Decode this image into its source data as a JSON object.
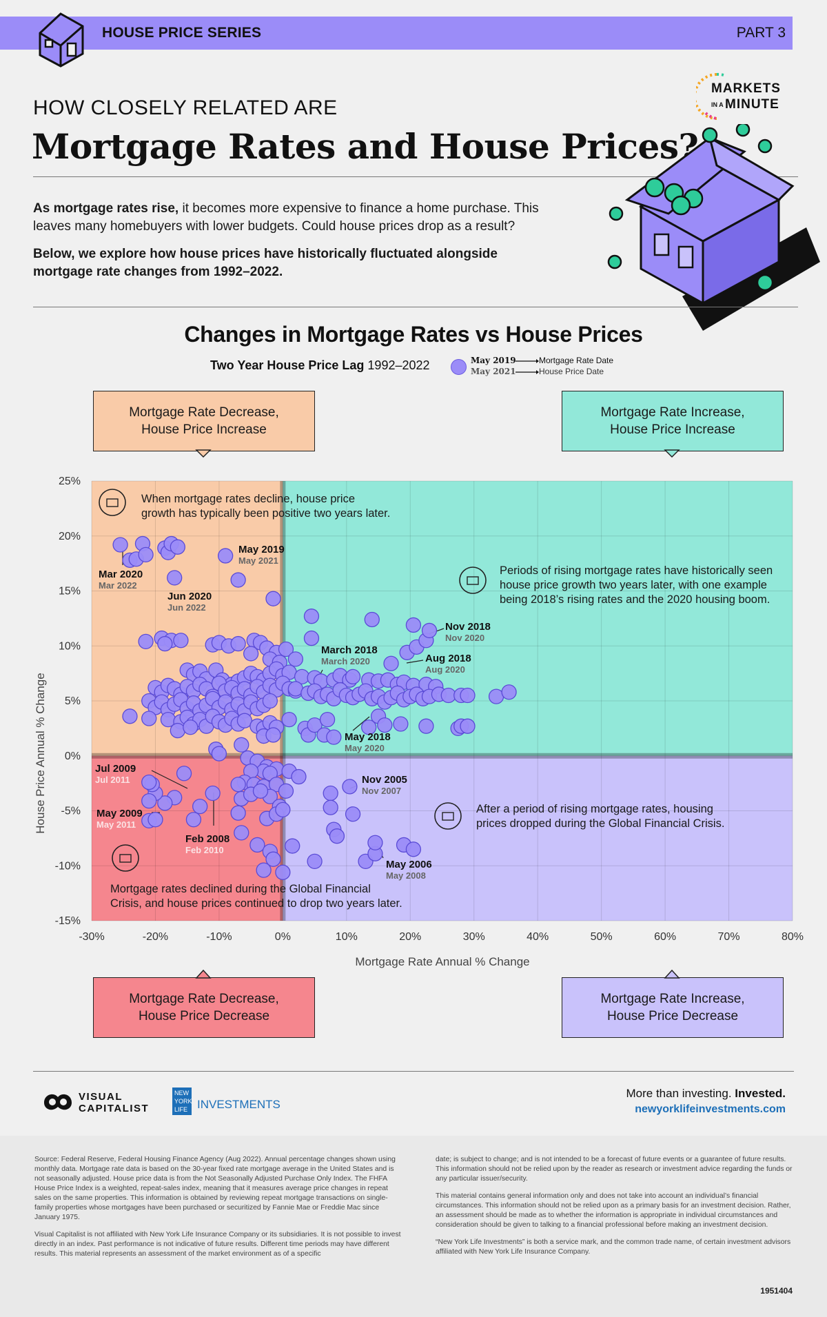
{
  "header": {
    "series_label": "HOUSE PRICE SERIES",
    "part_label": "PART 3",
    "kicker": "HOW CLOSELY RELATED ARE",
    "headline": "Mortgage Rates and House Prices?",
    "brand_markets": "MARKETS",
    "brand_in_a": "IN A",
    "brand_minute": "MINUTE"
  },
  "intro": {
    "p1_bold": "As mortgage rates rise,",
    "p1_rest": " it becomes more expensive to finance a home purchase. This leaves many homebuyers with lower budgets. Could house prices drop as a result?",
    "p2": "Below, we explore how house prices have historically fluctuated alongside mortgage rate changes from 1992–2022."
  },
  "legend": {
    "subtitle_bold": "Two Year House Price Lag",
    "subtitle_range": " 1992–2022",
    "date1": "May 2019",
    "date2": "May 2021",
    "label1": "Mortgage Rate Date",
    "label2": "House Price Date"
  },
  "quadrants": {
    "top_left": [
      "Mortgage Rate Decrease,",
      "House Price Increase"
    ],
    "top_right": [
      "Mortgage Rate Increase,",
      "House Price Increase"
    ],
    "bottom_left": [
      "Mortgage Rate Decrease,",
      "House Price Decrease"
    ],
    "bottom_right": [
      "Mortgage Rate Increase,",
      "House Price Decrease"
    ]
  },
  "colors": {
    "q_top_left": "#f9cba8",
    "q_top_right": "#92e8d9",
    "q_bottom_left": "#f5868e",
    "q_bottom_right": "#c9c2fb",
    "dot_fill": "#9b8cf8",
    "dot_stroke": "#5a4bd6",
    "banner": "#9b8cf8",
    "url_blue": "#1d6fb8"
  },
  "chart_data": {
    "type": "scatter",
    "title": "Changes in Mortgage Rates vs House Prices",
    "xlabel": "Mortgage Rate Annual % Change",
    "ylabel": "House Price Annual % Change",
    "xlim": [
      -30,
      80
    ],
    "ylim": [
      -15,
      25
    ],
    "xticks": [
      "-30%",
      "-20%",
      "-10%",
      "0%",
      "10%",
      "20%",
      "30%",
      "40%",
      "50%",
      "60%",
      "70%",
      "80%"
    ],
    "yticks": [
      "25%",
      "20%",
      "15%",
      "10%",
      "5%",
      "0%",
      "-5%",
      "-10%",
      "-15%"
    ],
    "grid": true,
    "points": [
      [
        -25.5,
        19.2
      ],
      [
        -24,
        17.8
      ],
      [
        -23,
        17.9
      ],
      [
        -22,
        19.3
      ],
      [
        -21.5,
        18.3
      ],
      [
        -18.5,
        18.9
      ],
      [
        -18,
        18.5
      ],
      [
        -17.5,
        19.3
      ],
      [
        -16.5,
        19
      ],
      [
        -9,
        18.2
      ],
      [
        -7,
        16
      ],
      [
        -17,
        16.2
      ],
      [
        -21.5,
        10.4
      ],
      [
        -19,
        10.7
      ],
      [
        -17.5,
        10.5
      ],
      [
        -16,
        10.5
      ],
      [
        -18.5,
        10.2
      ],
      [
        -11,
        10.1
      ],
      [
        -10,
        10.3
      ],
      [
        -8.5,
        10
      ],
      [
        -7,
        10.2
      ],
      [
        -4.5,
        10.5
      ],
      [
        -3.5,
        10.3
      ],
      [
        -2.5,
        9.8
      ],
      [
        -1,
        9.4
      ],
      [
        -5,
        9.3
      ],
      [
        -2,
        8.8
      ],
      [
        -0.5,
        8.5
      ],
      [
        0.5,
        9.7
      ],
      [
        2,
        8.8
      ],
      [
        -1.5,
        14.3
      ],
      [
        -15,
        7.8
      ],
      [
        -14,
        7.4
      ],
      [
        -13,
        7.7
      ],
      [
        -12,
        7
      ],
      [
        -10.5,
        7.8
      ],
      [
        -9.5,
        6.9
      ],
      [
        -8,
        6.5
      ],
      [
        -7,
        6.8
      ],
      [
        -6,
        7.1
      ],
      [
        -5,
        7.5
      ],
      [
        -4,
        7.2
      ],
      [
        -3,
        6.9
      ],
      [
        -2,
        7.5
      ],
      [
        -1,
        7.9
      ],
      [
        0,
        7.3
      ],
      [
        1,
        7.6
      ],
      [
        -20,
        6.2
      ],
      [
        -19,
        5.8
      ],
      [
        -18,
        6.4
      ],
      [
        -17,
        6.1
      ],
      [
        -16,
        5.6
      ],
      [
        -15,
        6.3
      ],
      [
        -14,
        5.9
      ],
      [
        -13,
        6.5
      ],
      [
        -12,
        6.1
      ],
      [
        -11,
        5.4
      ],
      [
        -10,
        6.6
      ],
      [
        -9,
        5.9
      ],
      [
        -8,
        6.2
      ],
      [
        -7,
        5.7
      ],
      [
        -6,
        6.1
      ],
      [
        -5,
        5.5
      ],
      [
        -4,
        6.3
      ],
      [
        -3,
        5.8
      ],
      [
        -2,
        6.4
      ],
      [
        -1,
        6
      ],
      [
        0,
        6.6
      ],
      [
        1,
        6.1
      ],
      [
        2,
        5.9
      ],
      [
        -21,
        5
      ],
      [
        -20,
        4.4
      ],
      [
        -19,
        4.9
      ],
      [
        -18,
        4.2
      ],
      [
        -17,
        4.7
      ],
      [
        -16,
        5.1
      ],
      [
        -15,
        4.3
      ],
      [
        -14,
        4.8
      ],
      [
        -13,
        4.1
      ],
      [
        -12,
        4.6
      ],
      [
        -11,
        5.2
      ],
      [
        -10,
        4.4
      ],
      [
        -9,
        4.9
      ],
      [
        -8,
        4.2
      ],
      [
        -7,
        4.7
      ],
      [
        -6,
        4.1
      ],
      [
        -5,
        4.9
      ],
      [
        -4,
        4.3
      ],
      [
        -3,
        4.6
      ],
      [
        -2,
        5
      ],
      [
        -24,
        3.6
      ],
      [
        -21,
        3.4
      ],
      [
        -18,
        3.3
      ],
      [
        -16,
        3.1
      ],
      [
        -15,
        3.5
      ],
      [
        -14,
        2.9
      ],
      [
        -13,
        3.3
      ],
      [
        -12,
        2.7
      ],
      [
        -11,
        3.6
      ],
      [
        -10,
        3.1
      ],
      [
        -9,
        2.8
      ],
      [
        -8,
        3.4
      ],
      [
        -7,
        2.9
      ],
      [
        -6,
        3.2
      ],
      [
        -4,
        2.7
      ],
      [
        -3,
        2.5
      ],
      [
        -2,
        3
      ],
      [
        -1,
        2.6
      ],
      [
        -16.5,
        2.3
      ],
      [
        -14.5,
        2.6
      ],
      [
        -10.5,
        0.6
      ],
      [
        -10,
        0.2
      ],
      [
        -6.5,
        1
      ],
      [
        -3,
        1.8
      ],
      [
        -1.5,
        1.9
      ],
      [
        1,
        3.3
      ],
      [
        3.5,
        2.5
      ],
      [
        4,
        1.9
      ],
      [
        5,
        2.8
      ],
      [
        6.5,
        1.9
      ],
      [
        7,
        3.3
      ],
      [
        8,
        1.7
      ],
      [
        13.5,
        2.6
      ],
      [
        15,
        3.6
      ],
      [
        16,
        2.8
      ],
      [
        18.5,
        2.9
      ],
      [
        22.5,
        2.7
      ],
      [
        27.5,
        2.5
      ],
      [
        28,
        2.7
      ],
      [
        29,
        2.7
      ],
      [
        3,
        7.2
      ],
      [
        5,
        7.1
      ],
      [
        6,
        6.8
      ],
      [
        8,
        6.9
      ],
      [
        9,
        7.3
      ],
      [
        10.5,
        6.9
      ],
      [
        11,
        7.2
      ],
      [
        13.5,
        6.9
      ],
      [
        15,
        6.8
      ],
      [
        16.5,
        6.9
      ],
      [
        18,
        6.5
      ],
      [
        19,
        6.7
      ],
      [
        20.5,
        6.4
      ],
      [
        22.5,
        6.5
      ],
      [
        24,
        6.3
      ],
      [
        2,
        6.1
      ],
      [
        4,
        5.7
      ],
      [
        5,
        5.9
      ],
      [
        6,
        5.4
      ],
      [
        7,
        5.6
      ],
      [
        8,
        5.2
      ],
      [
        9,
        6
      ],
      [
        10,
        5.5
      ],
      [
        11,
        5.3
      ],
      [
        12,
        5.6
      ],
      [
        13,
        5.9
      ],
      [
        14,
        5.2
      ],
      [
        15,
        5.4
      ],
      [
        16,
        4.9
      ],
      [
        17,
        5.3
      ],
      [
        18,
        5.7
      ],
      [
        19,
        5.1
      ],
      [
        20,
        5.4
      ],
      [
        21,
        5.6
      ],
      [
        22,
        5.2
      ],
      [
        23,
        5.4
      ],
      [
        24.5,
        5.6
      ],
      [
        26,
        5.5
      ],
      [
        28,
        5.5
      ],
      [
        29,
        5.5
      ],
      [
        33.5,
        5.4
      ],
      [
        35.5,
        5.8
      ],
      [
        17,
        8.4
      ],
      [
        19.5,
        9.4
      ],
      [
        21,
        9.9
      ],
      [
        22.5,
        10.5
      ],
      [
        20.5,
        11.9
      ],
      [
        23,
        11.4
      ],
      [
        4.5,
        12.7
      ],
      [
        14,
        12.4
      ],
      [
        4.5,
        10.7
      ],
      [
        -5.5,
        -0.2
      ],
      [
        -4,
        -0.5
      ],
      [
        -2.5,
        -1
      ],
      [
        -1,
        -1.2
      ],
      [
        -3,
        -1.4
      ],
      [
        -5,
        -1.4
      ],
      [
        -2,
        -1.6
      ],
      [
        1,
        -1.4
      ],
      [
        2.5,
        -1.9
      ],
      [
        -6,
        -2.4
      ],
      [
        -4.5,
        -2.6
      ],
      [
        -3,
        -2.8
      ],
      [
        -1,
        -2.6
      ],
      [
        0.5,
        -3.2
      ],
      [
        -2,
        -3.7
      ],
      [
        -0.5,
        -4.6
      ],
      [
        -7,
        -2.6
      ],
      [
        -6.5,
        -3.9
      ],
      [
        -5,
        -3.5
      ],
      [
        -3.5,
        -3.2
      ],
      [
        -7,
        -5.2
      ],
      [
        -2.5,
        -5.7
      ],
      [
        -1,
        -5.3
      ],
      [
        -6.5,
        -7
      ],
      [
        -4,
        -8.1
      ],
      [
        -2,
        -8.7
      ],
      [
        -1.5,
        -9.4
      ],
      [
        -3,
        -10.4
      ],
      [
        0,
        -10.6
      ],
      [
        1.5,
        -8.2
      ],
      [
        5,
        -9.6
      ],
      [
        -11,
        -3.4
      ],
      [
        -13,
        -4.6
      ],
      [
        -14,
        -5.8
      ],
      [
        -15.5,
        -1.6
      ],
      [
        -17,
        -3.8
      ],
      [
        -18.5,
        -4.3
      ],
      [
        -20,
        -3.4
      ],
      [
        -20.5,
        -2.6
      ],
      [
        -21,
        -2.4
      ],
      [
        -21,
        -4.1
      ],
      [
        -21,
        -5.9
      ],
      [
        -20,
        -5.8
      ],
      [
        0,
        -4.9
      ],
      [
        7.5,
        -3.4
      ],
      [
        7.5,
        -4.7
      ],
      [
        8,
        -6.7
      ],
      [
        8.5,
        -7.3
      ],
      [
        11,
        -5.3
      ],
      [
        10.5,
        -2.8
      ],
      [
        13,
        -9.6
      ],
      [
        14.5,
        -8.9
      ],
      [
        14.5,
        -7.9
      ],
      [
        19,
        -8.1
      ],
      [
        20.5,
        -8.5
      ]
    ],
    "annotations": [
      {
        "label": "Mar 2020",
        "sublabel": "Mar 2022"
      },
      {
        "label": "May 2019",
        "sublabel": "May 2021"
      },
      {
        "label": "Jun 2020",
        "sublabel": "Jun 2022"
      },
      {
        "label": "March 2018",
        "sublabel": "March 2020"
      },
      {
        "label": "Nov 2018",
        "sublabel": "Nov 2020"
      },
      {
        "label": "Aug 2018",
        "sublabel": "Aug 2020"
      },
      {
        "label": "May 2018",
        "sublabel": "May 2020"
      },
      {
        "label": "Jul 2009",
        "sublabel": "Jul 2011"
      },
      {
        "label": "May 2009",
        "sublabel": "May 2011"
      },
      {
        "label": "Feb 2008",
        "sublabel": "Feb 2010"
      },
      {
        "label": "Nov 2005",
        "sublabel": "Nov 2007"
      },
      {
        "label": "May 2006",
        "sublabel": "May 2008"
      }
    ],
    "callouts": {
      "top_left": [
        "When mortgage rates decline, house price",
        "growth has typically been positive two years later."
      ],
      "top_right": [
        "Periods of rising mortgage rates have historically seen",
        "house price growth two years later, with one example",
        "being 2018’s rising rates and the 2020 housing boom."
      ],
      "bottom_right": [
        "After a period of rising mortgage rates, housing",
        "prices dropped during the Global Financial Crisis."
      ],
      "bottom_left": [
        "Mortgage rates declined during the Global Financial",
        "Crisis, and house prices continued to drop two years later."
      ]
    }
  },
  "footer": {
    "vc_line1": "VISUAL",
    "vc_line2": "CAPITALIST",
    "nyl_badge_1": "NEW",
    "nyl_badge_2": "YORK",
    "nyl_badge_3": "LIFE",
    "nyl_word": "INVESTMENTS",
    "tagline_1": "More than investing. ",
    "tagline_2": "Invested.",
    "url": "newyorklifeinvestments.com",
    "code": "1951404"
  },
  "fineprint": {
    "left_1": "Source: Federal Reserve, Federal Housing Finance Agency (Aug 2022). Annual percentage changes shown using monthly data. Mortgage rate data is based on the 30-year fixed rate mortgage average in the United States and is not seasonally adjusted. House price data is from the Not Seasonally Adjusted Purchase Only Index. The FHFA House Price Index is a weighted, repeat-sales index, meaning that it measures average price changes in repeat sales on the same properties. This information is obtained by reviewing repeat mortgage transactions on single-family properties whose mortgages have been purchased or securitized by Fannie Mae or Freddie Mac since January 1975.",
    "left_2": "Visual Capitalist is not affiliated with New York Life Insurance Company or its subsidiaries. It is not possible to invest directly in an index. Past performance is not indicative of future results. Different time periods may have different results. This material represents an assessment of the market environment as of a specific",
    "right_1": "date; is subject to change; and is not intended to be a forecast of future events or a guarantee of future results. This information should not be relied upon by the reader as research or investment advice regarding the funds or any particular issuer/security.",
    "right_2": "This material contains general information only and does not take into account an individual’s financial circumstances. This information should not be relied upon as a primary basis for an investment decision. Rather, an assessment should be made as to whether the information is appropriate in individual circumstances and consideration should be given to talking to a financial professional before making an investment decision.",
    "right_3": "“New York Life Investments” is both a service mark, and the common trade name, of certain investment advisors affiliated with New York Life Insurance Company."
  }
}
